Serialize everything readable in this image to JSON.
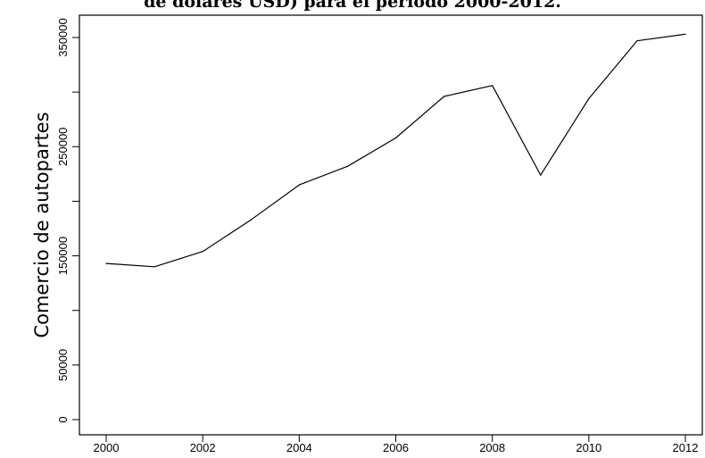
{
  "chart_data": {
    "type": "line",
    "title": "de dólares USD) para el período 2000-2012.",
    "xlabel": "",
    "ylabel": "Comercio de autopartes",
    "x": [
      2000,
      2001,
      2002,
      2003,
      2004,
      2005,
      2006,
      2007,
      2008,
      2009,
      2010,
      2011,
      2012
    ],
    "series": [
      {
        "values": [
          143000,
          140000,
          154000,
          183000,
          215000,
          232000,
          258000,
          296000,
          306000,
          224000,
          294000,
          347000,
          353000
        ]
      }
    ],
    "xticks": [
      "2000",
      "2002",
      "2004",
      "2006",
      "2008",
      "2010",
      "2012"
    ],
    "yticks": [
      "0",
      "50000",
      "150000",
      "250000",
      "350000"
    ],
    "xlim": [
      2000,
      2012
    ],
    "ylim": [
      0,
      350000
    ],
    "grid": false,
    "line_color": "#000000"
  }
}
